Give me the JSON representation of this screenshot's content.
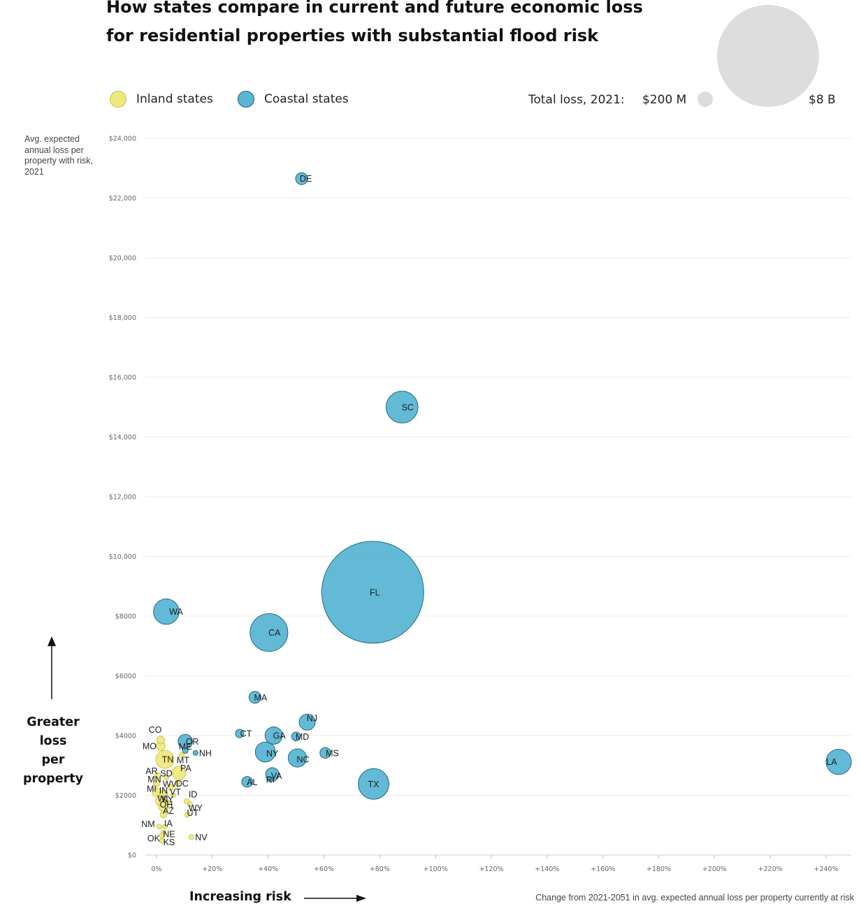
{
  "title_line1": "How states compare in current and future economic loss",
  "title_line2": "for residential properties with substantial flood risk",
  "legend": {
    "inland": {
      "label": "Inland states",
      "color": "#eee97f",
      "stroke": "#c9c349"
    },
    "coastal": {
      "label": "Coastal states",
      "color": "#5bb6d4",
      "stroke": "#1b5f78"
    }
  },
  "size_legend": {
    "title": "Total loss, 2021:",
    "min_label": "$200 M",
    "max_label": "$8 B"
  },
  "yaxis_desc": "Avg. expected annual loss per property with risk, 2021",
  "y_arrow_label": [
    "Greater loss",
    "per property"
  ],
  "x_arrow_label": "Increasing risk",
  "xaxis_desc": "Change from 2021-2051 in avg. expected annual loss per property currently at risk",
  "chart_data": {
    "type": "scatter",
    "title": "How states compare in current and future economic loss for residential properties with substantial flood risk",
    "xlabel": "Change from 2021-2051 in avg. expected annual loss per property currently at risk",
    "ylabel": "Avg. expected annual loss per property with risk, 2021",
    "xlim": [
      -4,
      249
    ],
    "ylim": [
      0,
      24000
    ],
    "x_ticks": [
      0,
      20,
      40,
      60,
      80,
      100,
      120,
      140,
      160,
      180,
      200,
      220,
      240
    ],
    "x_tick_labels": [
      "0%",
      "+20%",
      "+40%",
      "+60%",
      "+80%",
      "+100%",
      "+120%",
      "+140%",
      "+160%",
      "+180%",
      "+200%",
      "+220%",
      "+240%"
    ],
    "y_ticks": [
      0,
      2000,
      4000,
      6000,
      8000,
      10000,
      12000,
      14000,
      16000,
      18000,
      20000,
      22000,
      24000
    ],
    "y_tick_labels": [
      "$0",
      "$2000",
      "$4000",
      "$6000",
      "$8000",
      "$10,000",
      "$12,000",
      "$14,000",
      "$16,000",
      "$18,000",
      "$20,000",
      "$22,000",
      "$24,000"
    ],
    "size_legend_values_musd": [
      200,
      8000
    ],
    "series": [
      {
        "name": "Coastal states",
        "group": "coastal",
        "points": [
          {
            "state": "FL",
            "x": 77.5,
            "y": 8800,
            "loss_musd": 8000,
            "lx": 3,
            "ly": 0
          },
          {
            "state": "CA",
            "x": 40.3,
            "y": 7450,
            "loss_musd": 1100,
            "lx": 8,
            "ly": 0
          },
          {
            "state": "TX",
            "x": 77.8,
            "y": 2380,
            "loss_musd": 720,
            "lx": 0,
            "ly": 0
          },
          {
            "state": "SC",
            "x": 88.0,
            "y": 15000,
            "loss_musd": 780,
            "lx": 8,
            "ly": 0
          },
          {
            "state": "LA",
            "x": 244.5,
            "y": 3120,
            "loss_musd": 490,
            "lx": -10,
            "ly": 0
          },
          {
            "state": "WA",
            "x": 3.5,
            "y": 8150,
            "loss_musd": 500,
            "lx": 14,
            "ly": 0
          },
          {
            "state": "NY",
            "x": 39.0,
            "y": 3450,
            "loss_musd": 310,
            "lx": 10,
            "ly": 2
          },
          {
            "state": "NC",
            "x": 50.5,
            "y": 3250,
            "loss_musd": 260,
            "lx": 8,
            "ly": 2
          },
          {
            "state": "GA",
            "x": 42.0,
            "y": 4000,
            "loss_musd": 230,
            "lx": 8,
            "ly": 0
          },
          {
            "state": "NJ",
            "x": 54.0,
            "y": 4450,
            "loss_musd": 200,
            "lx": 7,
            "ly": -6
          },
          {
            "state": "OR",
            "x": 10.3,
            "y": 3800,
            "loss_musd": 160,
            "lx": 10,
            "ly": 0
          },
          {
            "state": "VA",
            "x": 41.5,
            "y": 2700,
            "loss_musd": 140,
            "lx": 6,
            "ly": 2
          },
          {
            "state": "MA",
            "x": 35.3,
            "y": 5280,
            "loss_musd": 110,
            "lx": 8,
            "ly": 0
          },
          {
            "state": "MS",
            "x": 60.5,
            "y": 3420,
            "loss_musd": 90,
            "lx": 10,
            "ly": 0
          },
          {
            "state": "AL",
            "x": 32.5,
            "y": 2450,
            "loss_musd": 90,
            "lx": 7,
            "ly": 0
          },
          {
            "state": "DE",
            "x": 52.0,
            "y": 22650,
            "loss_musd": 110,
            "lx": 6,
            "ly": 0
          },
          {
            "state": "MD",
            "x": 50.0,
            "y": 3970,
            "loss_musd": 60,
            "lx": 9,
            "ly": 0
          },
          {
            "state": "CT",
            "x": 29.8,
            "y": 4070,
            "loss_musd": 55,
            "lx": 9,
            "ly": 0
          },
          {
            "state": "RI",
            "x": 40.8,
            "y": 2530,
            "loss_musd": 20,
            "lx": 0,
            "ly": 0
          },
          {
            "state": "ME",
            "x": 10.3,
            "y": 3500,
            "loss_musd": 25,
            "lx": 0,
            "ly": -6
          },
          {
            "state": "NH",
            "x": 14.0,
            "y": 3420,
            "loss_musd": 12,
            "lx": 14,
            "ly": 0
          }
        ]
      },
      {
        "name": "Inland states",
        "group": "inland",
        "points": [
          {
            "state": "TN",
            "x": 3.0,
            "y": 3200,
            "loss_musd": 250,
            "lx": 4,
            "ly": 0
          },
          {
            "state": "PA",
            "x": 8.0,
            "y": 2750,
            "loss_musd": 140,
            "lx": 10,
            "ly": -7
          },
          {
            "state": "MO",
            "x": 1.5,
            "y": 3650,
            "loss_musd": 60,
            "lx": -16,
            "ly": 0
          },
          {
            "state": "CO",
            "x": 1.5,
            "y": 3850,
            "loss_musd": 45,
            "lx": -8,
            "ly": -15
          },
          {
            "state": "MT",
            "x": 9.0,
            "y": 3350,
            "loss_musd": 15,
            "lx": 2,
            "ly": 7
          },
          {
            "state": "SD",
            "x": 3.5,
            "y": 2600,
            "loss_musd": 12,
            "lx": 0,
            "ly": -6
          },
          {
            "state": "AR",
            "x": 0.5,
            "y": 2650,
            "loss_musd": 30,
            "lx": -9,
            "ly": -7
          },
          {
            "state": "MN",
            "x": 0.0,
            "y": 2400,
            "loss_musd": 30,
            "lx": -3,
            "ly": -6
          },
          {
            "state": "DC",
            "x": 7.5,
            "y": 2400,
            "loss_musd": 20,
            "lx": 7,
            "ly": 0
          },
          {
            "state": "WV",
            "x": 5.0,
            "y": 2270,
            "loss_musd": 25,
            "lx": -1,
            "ly": -5
          },
          {
            "state": "MI",
            "x": 0.0,
            "y": 2100,
            "loss_musd": 60,
            "lx": -7,
            "ly": -5
          },
          {
            "state": "IN",
            "x": 2.5,
            "y": 2050,
            "loss_musd": 50,
            "lx": 0,
            "ly": -5
          },
          {
            "state": "VT",
            "x": 6.0,
            "y": 2000,
            "loss_musd": 10,
            "lx": 3,
            "ly": -5
          },
          {
            "state": "ID",
            "x": 10.8,
            "y": 1800,
            "loss_musd": 20,
            "lx": 9,
            "ly": -10
          },
          {
            "state": "WI",
            "x": 1.5,
            "y": 1800,
            "loss_musd": 80,
            "lx": 3,
            "ly": -4
          },
          {
            "state": "KY",
            "x": 4.0,
            "y": 1750,
            "loss_musd": 20,
            "lx": 0,
            "ly": -5
          },
          {
            "state": "OH",
            "x": 2.5,
            "y": 1620,
            "loss_musd": 70,
            "lx": 4,
            "ly": -3
          },
          {
            "state": "WY",
            "x": 12.0,
            "y": 1700,
            "loss_musd": 5,
            "lx": 8,
            "ly": 5
          },
          {
            "state": "AZ",
            "x": 2.5,
            "y": 1350,
            "loss_musd": 35,
            "lx": 7,
            "ly": -6
          },
          {
            "state": "UT",
            "x": 11.0,
            "y": 1350,
            "loss_musd": 10,
            "lx": 8,
            "ly": -3
          },
          {
            "state": "NM",
            "x": 1.0,
            "y": 950,
            "loss_musd": 15,
            "lx": -16,
            "ly": -4
          },
          {
            "state": "IA",
            "x": 3.0,
            "y": 950,
            "loss_musd": 8,
            "lx": 5,
            "ly": -5
          },
          {
            "state": "NE",
            "x": 2.5,
            "y": 750,
            "loss_musd": 12,
            "lx": 8,
            "ly": 2
          },
          {
            "state": "OK",
            "x": 2.0,
            "y": 650,
            "loss_musd": 12,
            "lx": -12,
            "ly": 4
          },
          {
            "state": "KS",
            "x": 2.0,
            "y": 480,
            "loss_musd": 8,
            "lx": 10,
            "ly": 2
          },
          {
            "state": "NV",
            "x": 12.5,
            "y": 600,
            "loss_musd": 5,
            "lx": 14,
            "ly": 0
          }
        ]
      }
    ]
  }
}
